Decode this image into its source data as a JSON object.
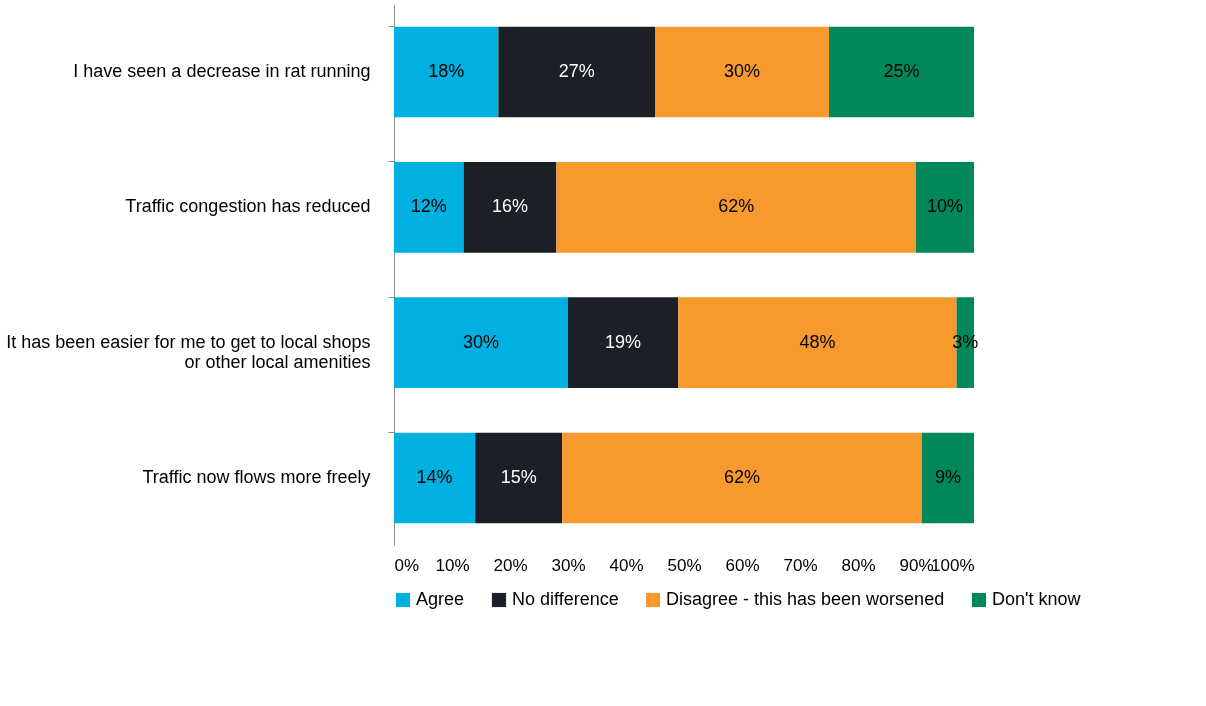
{
  "chart_data": {
    "type": "bar",
    "orientation": "horizontal",
    "stacked": true,
    "legend": "bottom",
    "grid": false,
    "categories": [
      "I have seen a decrease in rat running",
      "Traffic congestion has reduced",
      "It has been easier for me to get to local shops or other local amenities",
      "Traffic now flows more freely"
    ],
    "series": [
      {
        "name": "Agree",
        "color": "#00b0e0",
        "values": [
          18,
          12,
          30,
          14
        ],
        "value_labels": [
          "18%",
          "12%",
          "30%",
          "14%"
        ]
      },
      {
        "name": "No difference",
        "color": "#1b1f26",
        "values": [
          27,
          16,
          19,
          15
        ],
        "value_labels": [
          "27%",
          "16%",
          "19%",
          "15%"
        ]
      },
      {
        "name": "Disagree - this has been worsened",
        "color": "#f7992c",
        "values": [
          30,
          62,
          48,
          62
        ],
        "value_labels": [
          "30%",
          "62%",
          "48%",
          "62%"
        ]
      },
      {
        "name": "Don't know",
        "color": "#00875a",
        "values": [
          25,
          10,
          3,
          9
        ],
        "value_labels": [
          "25%",
          "10%",
          "3%",
          "9%"
        ]
      }
    ],
    "xlim": [
      0,
      100
    ],
    "xticks": [
      {
        "value": 0,
        "label": "0%"
      },
      {
        "value": 10,
        "label": "10%"
      },
      {
        "value": 20,
        "label": "20%"
      },
      {
        "value": 30,
        "label": "30%"
      },
      {
        "value": 40,
        "label": "40%"
      },
      {
        "value": 50,
        "label": "50%"
      },
      {
        "value": 60,
        "label": "60%"
      },
      {
        "value": 70,
        "label": "70%"
      },
      {
        "value": 80,
        "label": "80%"
      },
      {
        "value": 90,
        "label": "90%"
      },
      {
        "value": 100,
        "label": "100%"
      }
    ]
  }
}
